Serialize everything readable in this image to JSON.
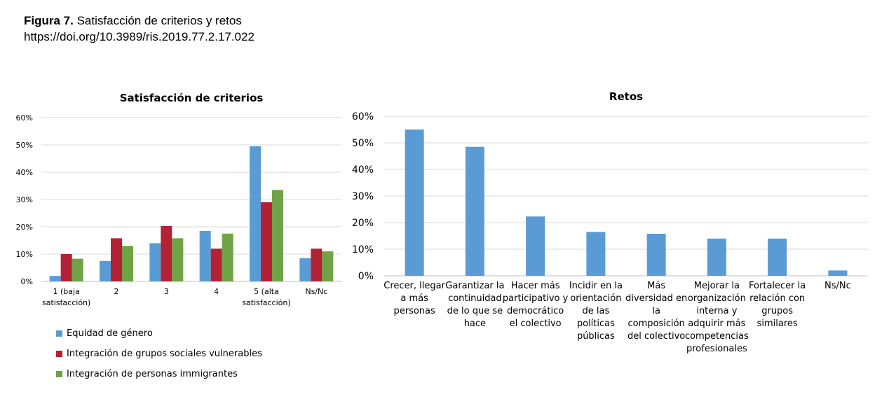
{
  "header": {
    "figure_label": "Figura 7.",
    "figure_title": "Satisfacción de criterios y retos",
    "doi": "https://doi.org/10.3989/ris.2019.77.2.17.022"
  },
  "colors": {
    "blue": "#5b9bd5",
    "red": "#b22234",
    "green": "#70a346",
    "grid": "#d9d9d9",
    "axis": "#bfbfbf"
  },
  "chart_data": [
    {
      "type": "bar",
      "title": "Satisfacción de criterios",
      "categories": [
        [
          "1 (baja",
          "satisfacción)"
        ],
        [
          "2"
        ],
        [
          "3"
        ],
        [
          "4"
        ],
        [
          "5 (alta",
          "satisfacción)"
        ],
        [
          "Ns/Nc"
        ]
      ],
      "series": [
        {
          "name": "Equidad de género",
          "color": "#5b9bd5",
          "values": [
            2,
            7.5,
            14,
            18.5,
            49.5,
            8.5
          ]
        },
        {
          "name": "Integración de grupos sociales vulnerables",
          "color": "#b22234",
          "values": [
            10,
            15.8,
            20.3,
            12,
            29,
            12
          ]
        },
        {
          "name": "Integración de personas immigrantes",
          "color": "#70a346",
          "values": [
            8.3,
            13,
            15.8,
            17.5,
            33.5,
            11
          ]
        }
      ],
      "ylim": [
        0,
        60
      ],
      "yticks": [
        "0%",
        "10%",
        "20%",
        "30%",
        "40%",
        "50%",
        "60%"
      ],
      "grid": true,
      "legend": "bottom-left"
    },
    {
      "type": "bar",
      "title": "Retos",
      "categories": [
        [
          "Crecer, llegar",
          "a más",
          "personas"
        ],
        [
          "Garantizar la",
          "continuidad",
          "de lo que se",
          "hace"
        ],
        [
          "Hacer más",
          "participativo y",
          "democrático",
          "el colectivo"
        ],
        [
          "Incidir en la",
          "orientación",
          "de las",
          "políticas",
          "públicas"
        ],
        [
          "Más",
          "diversidad en",
          "la",
          "composición",
          "del colectivo"
        ],
        [
          "Mejorar la",
          "organización",
          "interna y",
          "adquirir más",
          "competencias",
          "profesionales"
        ],
        [
          "Fortalecer la",
          "relación con",
          "grupos",
          "similares"
        ],
        [
          "Ns/Nc"
        ]
      ],
      "series": [
        {
          "color": "#5b9bd5",
          "values": [
            55,
            48.5,
            22.3,
            16.5,
            15.8,
            14,
            14,
            2
          ]
        }
      ],
      "ylim": [
        0,
        60
      ],
      "yticks": [
        "0%",
        "10%",
        "20%",
        "30%",
        "40%",
        "50%",
        "60%"
      ],
      "grid": true
    }
  ]
}
